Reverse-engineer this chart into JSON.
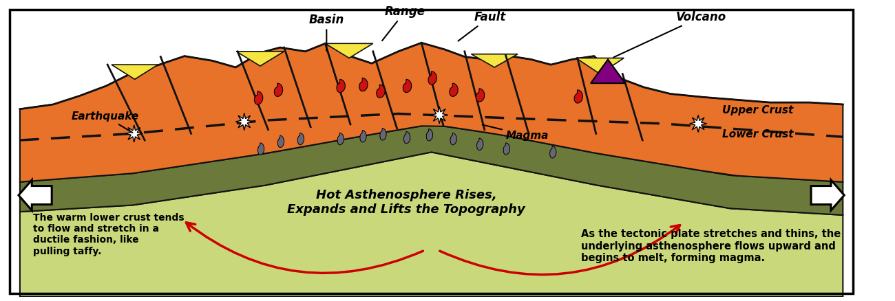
{
  "bg_color": "#ffffff",
  "upper_crust_color": "#E8722A",
  "lower_crust_dark": "#6B7A3A",
  "asthenosphere_color": "#C8D87A",
  "sediment_color": "#F5E642",
  "volcano_color": "#800080",
  "magma_red": "#CC1111",
  "magma_gray": "#666677",
  "outline_color": "#111111",
  "dashed_line_color": "#111111",
  "arrow_color": "#CC0000",
  "text_color": "#000000",
  "label_basin": "Basin",
  "label_range": "Range",
  "label_fault": "Fault",
  "label_volcano": "Volcano",
  "label_earthquake": "Earthquake",
  "label_upper_crust": "Upper Crust",
  "label_lower_crust": "Lower Crust",
  "label_magma": "Magma",
  "label_asthenosphere": "Hot Asthenosphere Rises,\nExpands and Lifts the Topography",
  "label_lower_text": "As the tectonic plate stretches and thins, the\nunderlying asthenosphere flows upward and\nbegins to melt, forming magma.",
  "label_warm_crust": "The warm lower crust tends\nto flow and stretch in a\nductile fashion, like\npulling taffy."
}
